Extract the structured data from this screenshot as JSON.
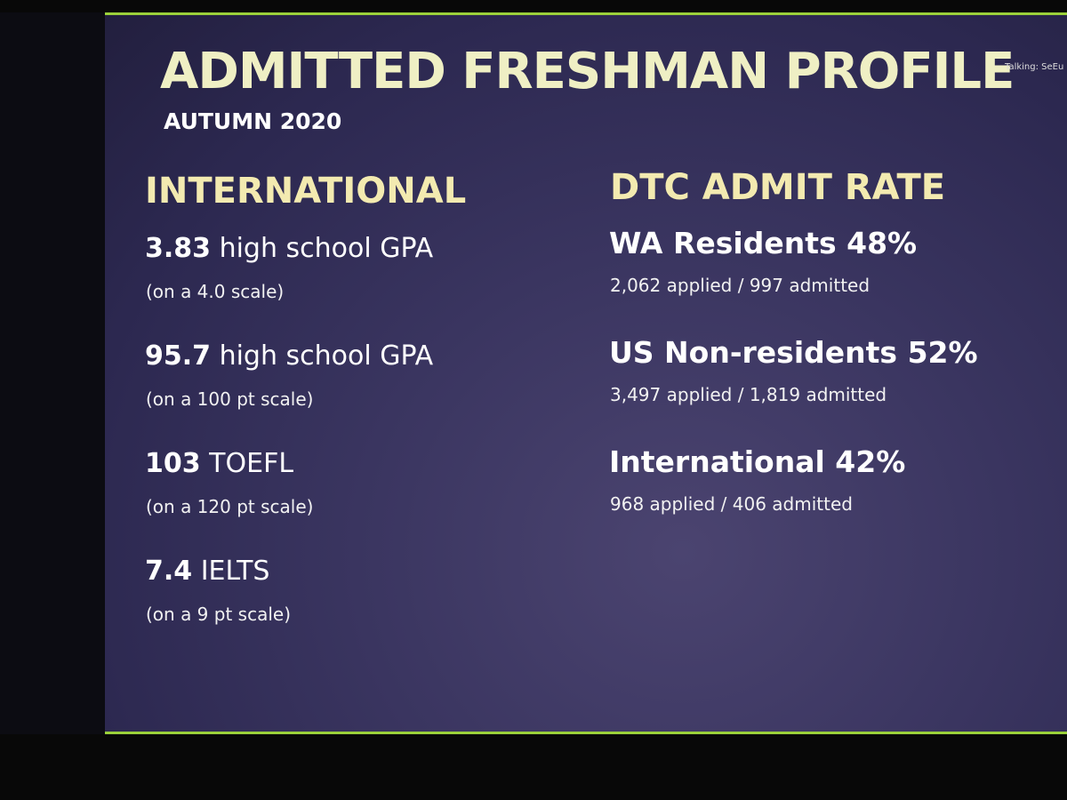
{
  "header": {
    "title": "ADMITTED FRESHMAN PROFILE",
    "subtitle": "AUTUMN 2020"
  },
  "overlay": {
    "talking": "Talking: SeEu"
  },
  "international": {
    "heading": "INTERNATIONAL",
    "items": [
      {
        "value": "3.83",
        "label": "high school GPA",
        "note": "(on a 4.0 scale)"
      },
      {
        "value": "95.7",
        "label": "high school GPA",
        "note": "(on a 100 pt scale)"
      },
      {
        "value": "103",
        "label": "TOEFL",
        "note": "(on a 120 pt scale)"
      },
      {
        "value": "7.4",
        "label": "IELTS",
        "note": "(on a 9 pt scale)"
      }
    ]
  },
  "admit_rate": {
    "heading": "DTC ADMIT RATE",
    "groups": [
      {
        "name": "WA Residents",
        "rate": "48%",
        "detail": "2,062 applied / 997 admitted"
      },
      {
        "name": "US Non-residents",
        "rate": "52%",
        "detail": "3,497 applied / 1,819 admitted"
      },
      {
        "name": "International",
        "rate": "42%",
        "detail": "968 applied / 406 admitted"
      }
    ]
  }
}
